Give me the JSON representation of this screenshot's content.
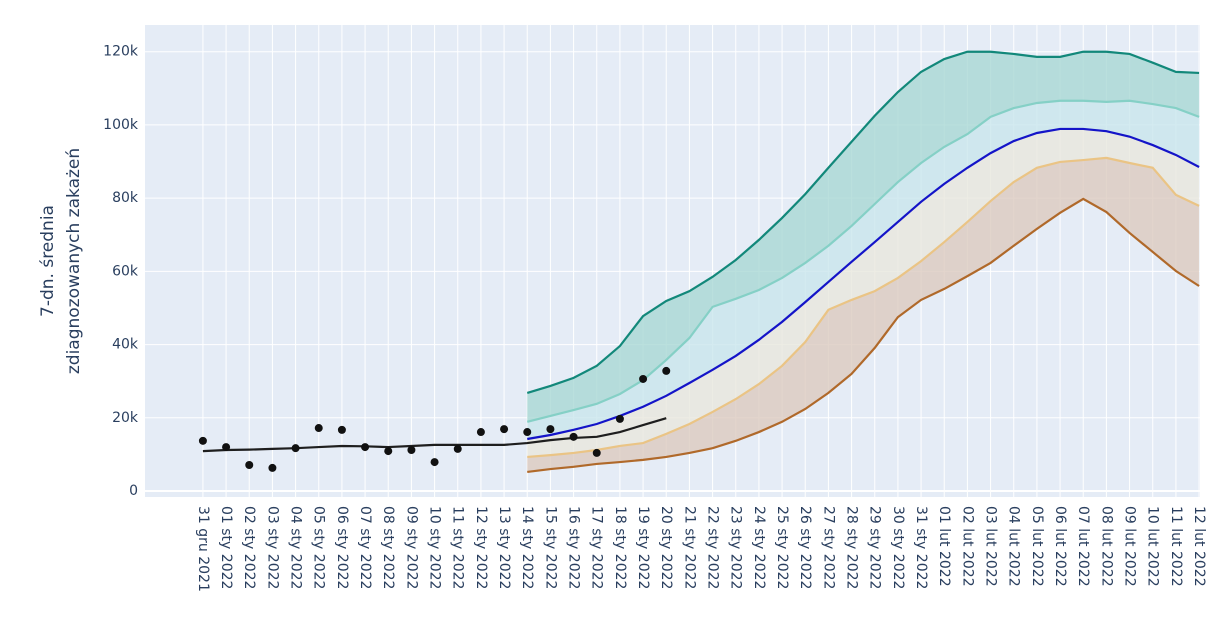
{
  "chart_data": {
    "type": "line",
    "ylabel": [
      "7-dn. średnia",
      "zdiagnozowanych zakażeń"
    ],
    "categories": [
      "31 gru 2021",
      "01 sty 2022",
      "02 sty 2022",
      "03 sty 2022",
      "04 sty 2022",
      "05 sty 2022",
      "06 sty 2022",
      "07 sty 2022",
      "08 sty 2022",
      "09 sty 2022",
      "10 sty 2022",
      "11 sty 2022",
      "12 sty 2022",
      "13 sty 2022",
      "14 sty 2022",
      "15 sty 2022",
      "16 sty 2022",
      "17 sty 2022",
      "18 sty 2022",
      "19 sty 2022",
      "20 sty 2022",
      "21 sty 2022",
      "22 sty 2022",
      "23 sty 2022",
      "24 sty 2022",
      "25 sty 2022",
      "26 sty 2022",
      "27 sty 2022",
      "28 sty 2022",
      "29 sty 2022",
      "30 sty 2022",
      "31 sty 2022",
      "01 lut 2022",
      "02 lut 2022",
      "03 lut 2022",
      "04 lut 2022",
      "05 lut 2022",
      "06 lut 2022",
      "07 lut 2022",
      "08 lut 2022",
      "09 lut 2022",
      "10 lut 2022",
      "11 lut 2022",
      "12 lut 2022"
    ],
    "ylim": [
      -1640,
      127300
    ],
    "yticks": [
      0,
      {
        "value": 20000,
        "label": "20k"
      },
      {
        "value": 40000,
        "label": "40k"
      },
      {
        "value": 60000,
        "label": "60k"
      },
      {
        "value": 80000,
        "label": "80k"
      },
      {
        "value": 100000,
        "label": "100k"
      },
      {
        "value": 120000,
        "label": "120k"
      }
    ],
    "grid": true,
    "series": [
      {
        "color": "#12887a",
        "mode": "lines",
        "values": [
          null,
          null,
          null,
          null,
          null,
          null,
          null,
          null,
          null,
          null,
          null,
          null,
          null,
          null,
          26800,
          28700,
          30900,
          34200,
          39600,
          47800,
          51900,
          54600,
          58500,
          63100,
          68600,
          74600,
          81100,
          88300,
          95400,
          102500,
          109000,
          114500,
          118000,
          120000,
          120000,
          119400,
          118600,
          118600,
          120000,
          120000,
          119400,
          117000,
          114500,
          114200
        ]
      },
      {
        "color": "#85d0c6",
        "mode": "lines",
        "fill": "#a9d8d4",
        "values": [
          null,
          null,
          null,
          null,
          null,
          null,
          null,
          null,
          null,
          null,
          null,
          null,
          null,
          null,
          18900,
          20500,
          22100,
          23800,
          26500,
          30300,
          35800,
          41800,
          50300,
          52500,
          54900,
          58200,
          62300,
          67000,
          72400,
          78400,
          84400,
          89600,
          94000,
          97500,
          102200,
          104600,
          106000,
          106600,
          106600,
          106300,
          106600,
          105700,
          104600,
          102200
        ]
      },
      {
        "color": "#1414c8",
        "mode": "lines",
        "fill": "#c9e6ec",
        "values": [
          null,
          null,
          null,
          null,
          null,
          null,
          null,
          null,
          null,
          null,
          null,
          null,
          null,
          null,
          14200,
          15300,
          16700,
          18300,
          20500,
          23000,
          26000,
          29500,
          33100,
          36900,
          41300,
          46200,
          51600,
          57100,
          62600,
          68000,
          73500,
          79000,
          83900,
          88300,
          92300,
          95600,
          97800,
          98900,
          98900,
          98300,
          96800,
          94500,
          91800,
          88500
        ]
      },
      {
        "color": "#eac485",
        "mode": "lines",
        "fill": "#e9e7dd",
        "values": [
          null,
          null,
          null,
          null,
          null,
          null,
          null,
          null,
          null,
          null,
          null,
          null,
          null,
          null,
          9300,
          9800,
          10400,
          11200,
          12300,
          13100,
          15600,
          18300,
          21600,
          25100,
          29200,
          34200,
          40700,
          49500,
          52200,
          54600,
          58200,
          62800,
          68000,
          73500,
          79200,
          84400,
          88300,
          89900,
          90400,
          91000,
          89600,
          88300,
          80900,
          77900
        ]
      },
      {
        "color": "#b0692a",
        "mode": "lines",
        "fill": "#dccbbf",
        "values": [
          null,
          null,
          null,
          null,
          null,
          null,
          null,
          null,
          null,
          null,
          null,
          null,
          null,
          null,
          5200,
          6000,
          6600,
          7400,
          7900,
          8500,
          9300,
          10400,
          11700,
          13700,
          16100,
          18900,
          22400,
          26800,
          32000,
          39100,
          47500,
          52200,
          55200,
          58700,
          62300,
          67000,
          71600,
          76000,
          79800,
          76200,
          70500,
          65300,
          60100,
          56000
        ]
      },
      {
        "color": "#1e1e1e",
        "mode": "lines",
        "values": [
          10900,
          11200,
          11300,
          11500,
          11700,
          12000,
          12300,
          12200,
          12000,
          12300,
          12600,
          12600,
          12600,
          12600,
          13100,
          13900,
          14500,
          14800,
          16100,
          18000,
          19900,
          null,
          null,
          null,
          null,
          null,
          null,
          null,
          null,
          null,
          null,
          null,
          null,
          null,
          null,
          null,
          null,
          null,
          null,
          null,
          null,
          null,
          null,
          null
        ]
      },
      {
        "color": "#111111",
        "mode": "markers",
        "values": [
          13700,
          12000,
          7100,
          6300,
          11700,
          17200,
          16700,
          12000,
          10900,
          11200,
          7900,
          11500,
          16100,
          16900,
          16100,
          16900,
          14800,
          10400,
          19700,
          30600,
          32800,
          null,
          null,
          null,
          null,
          null,
          null,
          null,
          null,
          null,
          null,
          null,
          null,
          null,
          null,
          null,
          null,
          null,
          null,
          null,
          null,
          null,
          null,
          null
        ]
      }
    ]
  }
}
